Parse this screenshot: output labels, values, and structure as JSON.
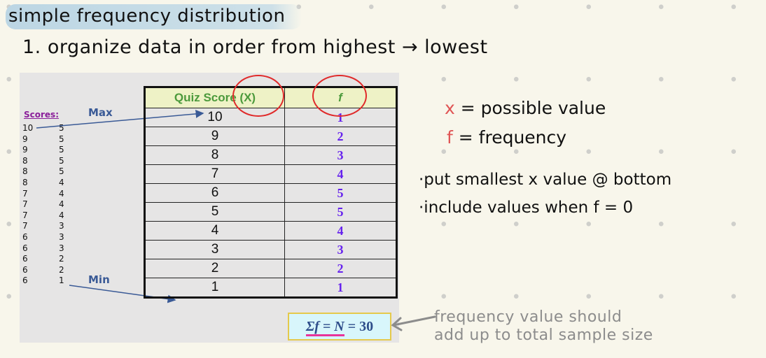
{
  "notes": {
    "title": "simple frequency distribution",
    "step1": "1. organize data in order from highest → lowest",
    "x_symbol": "x",
    "x_def": "= possible value",
    "f_symbol": "f",
    "f_def": "= frequency",
    "bullet1": "·put smallest x value @ bottom",
    "bullet2": "·include values when f = 0",
    "sum_note_line1": "frequency value should",
    "sum_note_line2": "add up to total sample size"
  },
  "slide": {
    "scores_label": "Scores:",
    "scores_col1": [
      "10",
      "9",
      "9",
      "8",
      "8",
      "8",
      "7",
      "7",
      "7",
      "7",
      "6",
      "6",
      "6",
      "6",
      "6"
    ],
    "scores_col2": [
      "5",
      "5",
      "5",
      "5",
      "5",
      "4",
      "4",
      "4",
      "4",
      "3",
      "3",
      "3",
      "2",
      "2",
      "1"
    ],
    "max_label": "Max",
    "min_label": "Min",
    "table": {
      "headers": [
        "Quiz Score (X)",
        "f"
      ],
      "rows": [
        {
          "x": "10",
          "f": "1"
        },
        {
          "x": "9",
          "f": "2"
        },
        {
          "x": "8",
          "f": "3"
        },
        {
          "x": "7",
          "f": "4"
        },
        {
          "x": "6",
          "f": "5"
        },
        {
          "x": "5",
          "f": "5"
        },
        {
          "x": "4",
          "f": "4"
        },
        {
          "x": "3",
          "f": "3"
        },
        {
          "x": "2",
          "f": "2"
        },
        {
          "x": "1",
          "f": "1"
        }
      ]
    },
    "sum_lhs": "Σf = N",
    "sum_rhs": " = 30"
  },
  "colors": {
    "header_text": "#4c9a3c",
    "f_values": "#6622ee",
    "annotation_red": "#e02a2a",
    "highlight_pink": "#e8349a"
  }
}
